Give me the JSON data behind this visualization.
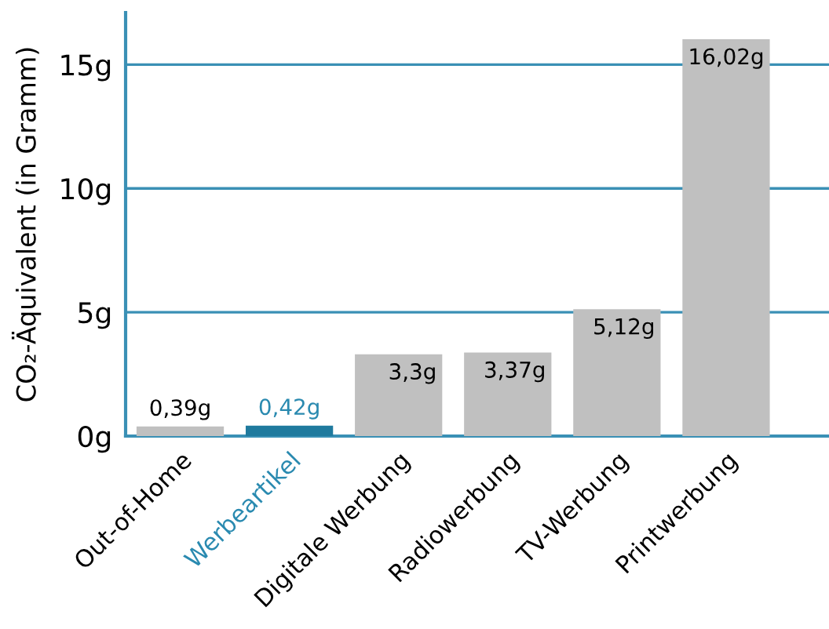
{
  "chart_data": {
    "type": "bar",
    "ylabel": "CO₂-Äquivalent (in Gramm)",
    "categories": [
      "Out-of-Home",
      "Werbeartikel",
      "Digitale Werbung",
      "Radiowerbung",
      "TV-Werbung",
      "Printwerbung"
    ],
    "values": [
      0.39,
      0.42,
      3.3,
      3.37,
      5.12,
      16.02
    ],
    "colors": [
      "#c0c0c0",
      "#1f7a9e",
      "#c0c0c0",
      "#c0c0c0",
      "#c0c0c0",
      "#c0c0c0"
    ],
    "value_labels": [
      "0,39g",
      "0,42g",
      "3,3g",
      "3,37g",
      "5,12g",
      "16,02g"
    ],
    "ylim": [
      0,
      17.1
    ],
    "yticks": [
      {
        "value": 0,
        "label": "0g"
      },
      {
        "value": 5,
        "label": "5g"
      },
      {
        "value": 10,
        "label": "10g"
      },
      {
        "value": 15,
        "label": "15g"
      }
    ],
    "grid": "y"
  }
}
